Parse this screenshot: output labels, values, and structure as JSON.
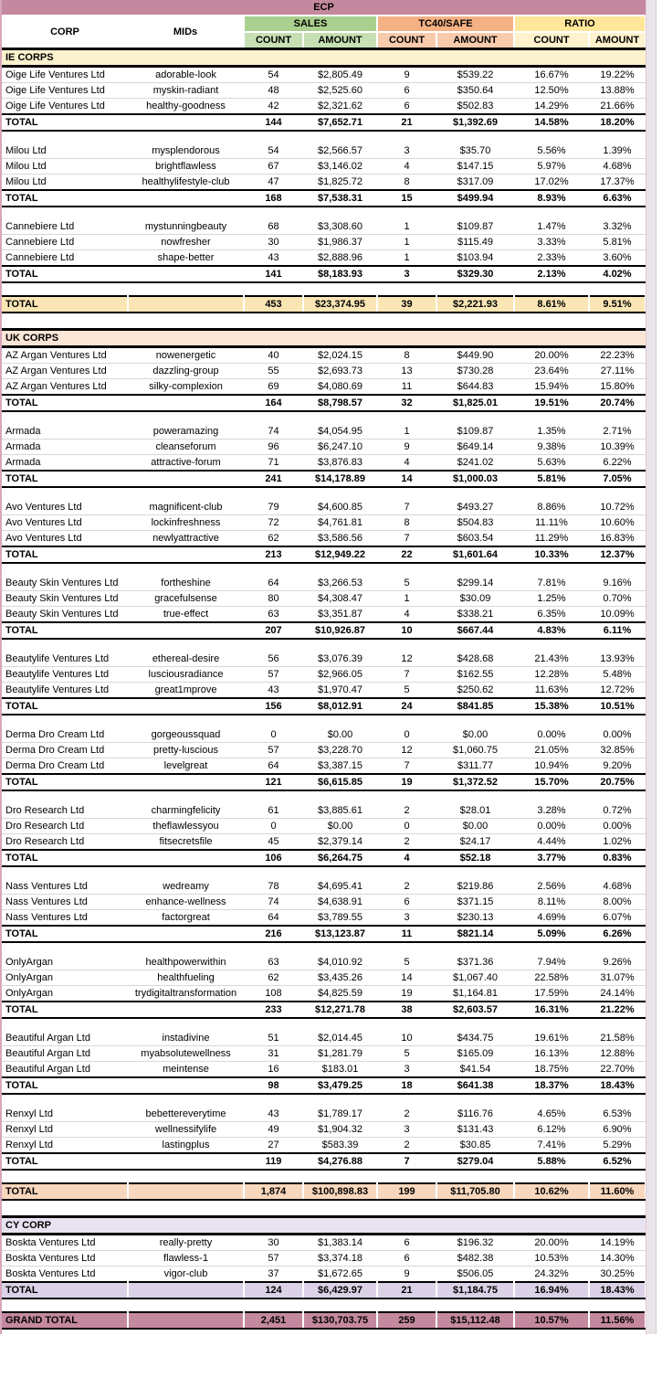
{
  "title": "ECP",
  "header": {
    "corp_label": "CORP",
    "mids_label": "MIDs",
    "sub_labels": [
      "COUNT",
      "AMOUNT"
    ],
    "groups": [
      {
        "label": "SALES",
        "color": "#A9D08E",
        "sub_color": "#C6E0B4"
      },
      {
        "label": "TC40/SAFE",
        "color": "#F4B183",
        "sub_color": "#F8CBAD"
      },
      {
        "label": "RATIO",
        "color": "#FFE699",
        "sub_color": "#FFF2CC"
      }
    ]
  },
  "labels": {
    "total": "TOTAL",
    "grand_total": "GRAND TOTAL"
  },
  "colors": {
    "title_bg": "#C4899F",
    "grand_total_bg": "#C4899F",
    "left_edge": "#D8A6BC",
    "gutter": "#E9E4E8",
    "gutter_edge": "#DFC8D4"
  },
  "sections": [
    {
      "name": "IE CORPS",
      "header_bg": "#FDF2CE",
      "total_bg": "#FAE6B4",
      "groups": [
        {
          "corp": "Oige Life Ventures Ltd",
          "rows": [
            {
              "mid": "adorable-look",
              "values": [
                "54",
                "$2,805.49",
                "9",
                "$539.22",
                "16.67%",
                "19.22%"
              ]
            },
            {
              "mid": "myskin-radiant",
              "values": [
                "48",
                "$2,525.60",
                "6",
                "$350.64",
                "12.50%",
                "13.88%"
              ]
            },
            {
              "mid": "healthy-goodness",
              "values": [
                "42",
                "$2,321.62",
                "6",
                "$502.83",
                "14.29%",
                "21.66%"
              ]
            }
          ],
          "total": [
            "144",
            "$7,652.71",
            "21",
            "$1,392.69",
            "14.58%",
            "18.20%"
          ]
        },
        {
          "corp": "Milou Ltd",
          "rows": [
            {
              "mid": "mysplendorous",
              "values": [
                "54",
                "$2,566.57",
                "3",
                "$35.70",
                "5.56%",
                "1.39%"
              ]
            },
            {
              "mid": "brightflawless",
              "values": [
                "67",
                "$3,146.02",
                "4",
                "$147.15",
                "5.97%",
                "4.68%"
              ]
            },
            {
              "mid": "healthylifestyle-club",
              "values": [
                "47",
                "$1,825.72",
                "8",
                "$317.09",
                "17.02%",
                "17.37%"
              ]
            }
          ],
          "total": [
            "168",
            "$7,538.31",
            "15",
            "$499.94",
            "8.93%",
            "6.63%"
          ]
        },
        {
          "corp": "Cannebiere Ltd",
          "rows": [
            {
              "mid": "mystunningbeauty",
              "values": [
                "68",
                "$3,308.60",
                "1",
                "$109.87",
                "1.47%",
                "3.32%"
              ]
            },
            {
              "mid": "nowfresher",
              "values": [
                "30",
                "$1,986.37",
                "1",
                "$115.49",
                "3.33%",
                "5.81%"
              ]
            },
            {
              "mid": "shape-better",
              "values": [
                "43",
                "$2,888.96",
                "1",
                "$103.94",
                "2.33%",
                "3.60%"
              ]
            }
          ],
          "total": [
            "141",
            "$8,183.93",
            "3",
            "$329.30",
            "2.13%",
            "4.02%"
          ]
        }
      ],
      "section_total": [
        "453",
        "$23,374.95",
        "39",
        "$2,221.93",
        "8.61%",
        "9.51%"
      ]
    },
    {
      "name": "UK CORPS",
      "header_bg": "#FBE5D6",
      "total_bg": "#F8D7BC",
      "groups": [
        {
          "corp": "AZ Argan Ventures Ltd",
          "rows": [
            {
              "mid": "nowenergetic",
              "values": [
                "40",
                "$2,024.15",
                "8",
                "$449.90",
                "20.00%",
                "22.23%"
              ]
            },
            {
              "mid": "dazzling-group",
              "values": [
                "55",
                "$2,693.73",
                "13",
                "$730.28",
                "23.64%",
                "27.11%"
              ]
            },
            {
              "mid": "silky-complexion",
              "values": [
                "69",
                "$4,080.69",
                "11",
                "$644.83",
                "15.94%",
                "15.80%"
              ]
            }
          ],
          "total": [
            "164",
            "$8,798.57",
            "32",
            "$1,825.01",
            "19.51%",
            "20.74%"
          ]
        },
        {
          "corp": "Armada",
          "rows": [
            {
              "mid": "poweramazing",
              "values": [
                "74",
                "$4,054.95",
                "1",
                "$109.87",
                "1.35%",
                "2.71%"
              ]
            },
            {
              "mid": "cleanseforum",
              "values": [
                "96",
                "$6,247.10",
                "9",
                "$649.14",
                "9.38%",
                "10.39%"
              ]
            },
            {
              "mid": "attractive-forum",
              "values": [
                "71",
                "$3,876.83",
                "4",
                "$241.02",
                "5.63%",
                "6.22%"
              ]
            }
          ],
          "total": [
            "241",
            "$14,178.89",
            "14",
            "$1,000.03",
            "5.81%",
            "7.05%"
          ]
        },
        {
          "corp": "Avo Ventures Ltd",
          "rows": [
            {
              "mid": "magnificent-club",
              "values": [
                "79",
                "$4,600.85",
                "7",
                "$493.27",
                "8.86%",
                "10.72%"
              ]
            },
            {
              "mid": "lockinfreshness",
              "values": [
                "72",
                "$4,761.81",
                "8",
                "$504.83",
                "11.11%",
                "10.60%"
              ]
            },
            {
              "mid": "newlyattractive",
              "values": [
                "62",
                "$3,586.56",
                "7",
                "$603.54",
                "11.29%",
                "16.83%"
              ]
            }
          ],
          "total": [
            "213",
            "$12,949.22",
            "22",
            "$1,601.64",
            "10.33%",
            "12.37%"
          ]
        },
        {
          "corp": "Beauty Skin Ventures Ltd",
          "rows": [
            {
              "mid": "fortheshine",
              "values": [
                "64",
                "$3,266.53",
                "5",
                "$299.14",
                "7.81%",
                "9.16%"
              ]
            },
            {
              "mid": "gracefulsense",
              "values": [
                "80",
                "$4,308.47",
                "1",
                "$30.09",
                "1.25%",
                "0.70%"
              ]
            },
            {
              "mid": "true-effect",
              "values": [
                "63",
                "$3,351.87",
                "4",
                "$338.21",
                "6.35%",
                "10.09%"
              ]
            }
          ],
          "total": [
            "207",
            "$10,926.87",
            "10",
            "$667.44",
            "4.83%",
            "6.11%"
          ]
        },
        {
          "corp": "Beautylife Ventures Ltd",
          "rows": [
            {
              "mid": "ethereal-desire",
              "values": [
                "56",
                "$3,076.39",
                "12",
                "$428.68",
                "21.43%",
                "13.93%"
              ]
            },
            {
              "mid": "lusciousradiance",
              "values": [
                "57",
                "$2,966.05",
                "7",
                "$162.55",
                "12.28%",
                "5.48%"
              ]
            },
            {
              "mid": "great1mprove",
              "values": [
                "43",
                "$1,970.47",
                "5",
                "$250.62",
                "11.63%",
                "12.72%"
              ]
            }
          ],
          "total": [
            "156",
            "$8,012.91",
            "24",
            "$841.85",
            "15.38%",
            "10.51%"
          ]
        },
        {
          "corp": "Derma Dro Cream Ltd",
          "rows": [
            {
              "mid": "gorgeoussquad",
              "values": [
                "0",
                "$0.00",
                "0",
                "$0.00",
                "0.00%",
                "0.00%"
              ]
            },
            {
              "mid": "pretty-luscious",
              "values": [
                "57",
                "$3,228.70",
                "12",
                "$1,060.75",
                "21.05%",
                "32.85%"
              ]
            },
            {
              "mid": "levelgreat",
              "values": [
                "64",
                "$3,387.15",
                "7",
                "$311.77",
                "10.94%",
                "9.20%"
              ]
            }
          ],
          "total": [
            "121",
            "$6,615.85",
            "19",
            "$1,372.52",
            "15.70%",
            "20.75%"
          ]
        },
        {
          "corp": "Dro Research Ltd",
          "rows": [
            {
              "mid": "charmingfelicity",
              "values": [
                "61",
                "$3,885.61",
                "2",
                "$28.01",
                "3.28%",
                "0.72%"
              ]
            },
            {
              "mid": "theflawlessyou",
              "values": [
                "0",
                "$0.00",
                "0",
                "$0.00",
                "0.00%",
                "0.00%"
              ]
            },
            {
              "mid": "fitsecretsfile",
              "values": [
                "45",
                "$2,379.14",
                "2",
                "$24.17",
                "4.44%",
                "1.02%"
              ]
            }
          ],
          "total": [
            "106",
            "$6,264.75",
            "4",
            "$52.18",
            "3.77%",
            "0.83%"
          ]
        },
        {
          "corp": "Nass Ventures Ltd",
          "rows": [
            {
              "mid": "wedreamy",
              "values": [
                "78",
                "$4,695.41",
                "2",
                "$219.86",
                "2.56%",
                "4.68%"
              ]
            },
            {
              "mid": "enhance-wellness",
              "values": [
                "74",
                "$4,638.91",
                "6",
                "$371.15",
                "8.11%",
                "8.00%"
              ]
            },
            {
              "mid": "factorgreat",
              "values": [
                "64",
                "$3,789.55",
                "3",
                "$230.13",
                "4.69%",
                "6.07%"
              ]
            }
          ],
          "total": [
            "216",
            "$13,123.87",
            "11",
            "$821.14",
            "5.09%",
            "6.26%"
          ]
        },
        {
          "corp": "OnlyArgan",
          "rows": [
            {
              "mid": "healthpowerwithin",
              "values": [
                "63",
                "$4,010.92",
                "5",
                "$371.36",
                "7.94%",
                "9.26%"
              ]
            },
            {
              "mid": "healthfueling",
              "values": [
                "62",
                "$3,435.26",
                "14",
                "$1,067.40",
                "22.58%",
                "31.07%"
              ]
            },
            {
              "mid": "trydigitaltransformation",
              "values": [
                "108",
                "$4,825.59",
                "19",
                "$1,164.81",
                "17.59%",
                "24.14%"
              ]
            }
          ],
          "total": [
            "233",
            "$12,271.78",
            "38",
            "$2,603.57",
            "16.31%",
            "21.22%"
          ]
        },
        {
          "corp": "Beautiful Argan Ltd",
          "rows": [
            {
              "mid": "instadivine",
              "values": [
                "51",
                "$2,014.45",
                "10",
                "$434.75",
                "19.61%",
                "21.58%"
              ]
            },
            {
              "mid": "myabsolutewellness",
              "values": [
                "31",
                "$1,281.79",
                "5",
                "$165.09",
                "16.13%",
                "12.88%"
              ]
            },
            {
              "mid": "meintense",
              "values": [
                "16",
                "$183.01",
                "3",
                "$41.54",
                "18.75%",
                "22.70%"
              ]
            }
          ],
          "total": [
            "98",
            "$3,479.25",
            "18",
            "$641.38",
            "18.37%",
            "18.43%"
          ]
        },
        {
          "corp": "Renxyl Ltd",
          "rows": [
            {
              "mid": "bebettereverytime",
              "values": [
                "43",
                "$1,789.17",
                "2",
                "$116.76",
                "4.65%",
                "6.53%"
              ]
            },
            {
              "mid": "wellnessifylife",
              "values": [
                "49",
                "$1,904.32",
                "3",
                "$131.43",
                "6.12%",
                "6.90%"
              ]
            },
            {
              "mid": "lastingplus",
              "values": [
                "27",
                "$583.39",
                "2",
                "$30.85",
                "7.41%",
                "5.29%"
              ]
            }
          ],
          "total": [
            "119",
            "$4,276.88",
            "7",
            "$279.04",
            "5.88%",
            "6.52%"
          ]
        }
      ],
      "section_total": [
        "1,874",
        "$100,898.83",
        "199",
        "$11,705.80",
        "10.62%",
        "11.60%"
      ]
    },
    {
      "name": "CY CORP",
      "header_bg": "#E9E3F1",
      "total_bg": "#DCD2E8",
      "groups": [
        {
          "corp": "Boskta Ventures Ltd",
          "total_bg": "#DCD2E8",
          "rows": [
            {
              "mid": "really-pretty",
              "values": [
                "30",
                "$1,383.14",
                "6",
                "$196.32",
                "20.00%",
                "14.19%"
              ]
            },
            {
              "mid": "flawless-1",
              "values": [
                "57",
                "$3,374.18",
                "6",
                "$482.38",
                "10.53%",
                "14.30%"
              ]
            },
            {
              "mid": "vigor-club",
              "values": [
                "37",
                "$1,672.65",
                "9",
                "$506.05",
                "24.32%",
                "30.25%"
              ]
            }
          ],
          "total": [
            "124",
            "$6,429.97",
            "21",
            "$1,184.75",
            "16.94%",
            "18.43%"
          ]
        }
      ],
      "section_total": null
    }
  ],
  "grand_total": [
    "2,451",
    "$130,703.75",
    "259",
    "$15,112.48",
    "10.57%",
    "11.56%"
  ]
}
